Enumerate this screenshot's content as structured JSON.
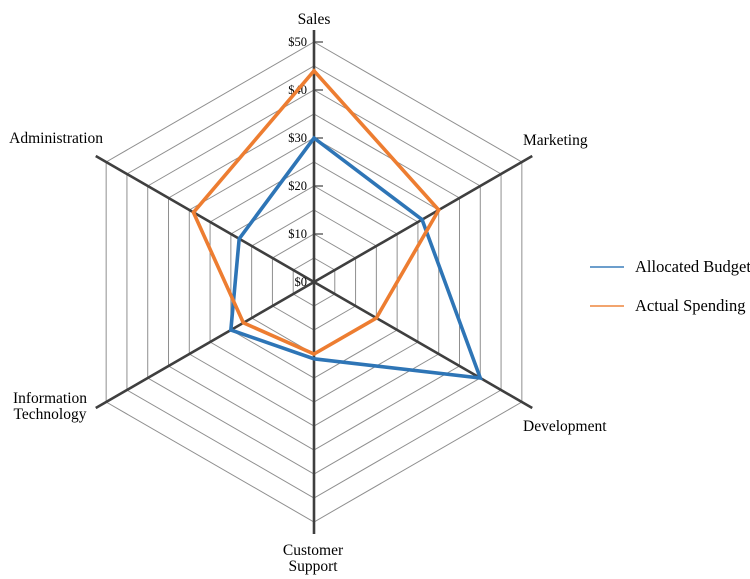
{
  "chart_data": {
    "type": "radar",
    "title": "",
    "categories": [
      "Sales",
      "Marketing",
      "Development",
      "Customer Support",
      "Information Technology",
      "Administration"
    ],
    "series": [
      {
        "name": "Allocated Budget",
        "color": "#2E75B6",
        "values": [
          30,
          26,
          40,
          16,
          20,
          18
        ]
      },
      {
        "name": "Actual Spending",
        "color": "#ED7D31",
        "values": [
          44,
          30,
          15,
          15,
          17,
          29
        ]
      }
    ],
    "radial_axis": {
      "min": 0,
      "max": 50,
      "tick_step": 10,
      "grid_step": 5,
      "unit": "$",
      "tick_labels": [
        "$0",
        "$10",
        "$20",
        "$30",
        "$40",
        "$50"
      ]
    },
    "grid": true,
    "legend_position": "right",
    "axis_color": "#3f3f3f",
    "grid_color": "#8f8f8f"
  }
}
